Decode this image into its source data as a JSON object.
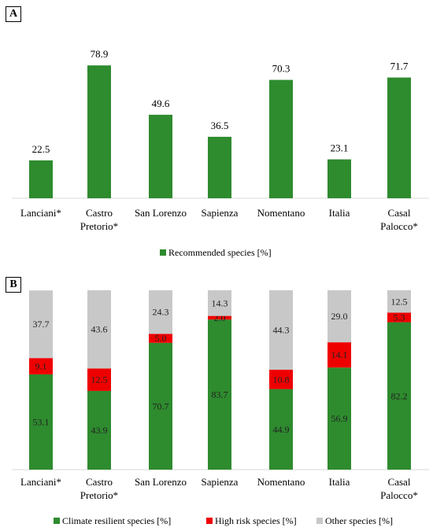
{
  "panels": {
    "a_label": "A",
    "b_label": "B"
  },
  "colors": {
    "green": "#2e8b2e",
    "red": "#ee0000",
    "gray": "#c8c8c8"
  },
  "chart_data": [
    {
      "type": "bar",
      "categories": [
        [
          "Lanciani*"
        ],
        [
          "Castro",
          "Pretorio*"
        ],
        [
          "San Lorenzo"
        ],
        [
          "Sapienza"
        ],
        [
          "Nomentano"
        ],
        [
          "Italia"
        ],
        [
          "Casal",
          "Palocco*"
        ]
      ],
      "series": [
        {
          "name": "Recommended species [%]",
          "values": [
            22.5,
            78.9,
            49.6,
            36.5,
            70.3,
            23.1,
            71.7
          ]
        }
      ],
      "value_labels": [
        "22.5",
        "78.9",
        "49.6",
        "36.5",
        "70.3",
        "23.1",
        "71.7"
      ],
      "ylim": [
        0,
        100
      ],
      "grid": false,
      "legend": "bottom"
    },
    {
      "type": "bar",
      "stacked": true,
      "categories": [
        [
          "Lanciani*"
        ],
        [
          "Castro",
          "Pretorio*"
        ],
        [
          "San Lorenzo"
        ],
        [
          "Sapienza"
        ],
        [
          "Nomentano"
        ],
        [
          "Italia"
        ],
        [
          "Casal",
          "Palocco*"
        ]
      ],
      "series": [
        {
          "name": "Climate resilient species [%]",
          "values": [
            53.1,
            43.9,
            70.7,
            83.7,
            44.9,
            56.9,
            82.2
          ],
          "labels": [
            "53.1",
            "43.9",
            "70.7",
            "83.7",
            "44.9",
            "56.9",
            "82.2"
          ]
        },
        {
          "name": "High risk species [%]",
          "values": [
            9.1,
            12.5,
            5.0,
            2.0,
            10.8,
            14.1,
            5.3
          ],
          "labels": [
            "9.1",
            "12.5",
            "5.0",
            "2.0",
            "10.8",
            "14.1",
            "5.3"
          ]
        },
        {
          "name": "Other species [%]",
          "values": [
            37.7,
            43.6,
            24.3,
            14.3,
            44.3,
            29.0,
            12.5
          ],
          "labels": [
            "37.7",
            "43.6",
            "24.3",
            "14.3",
            "44.3",
            "29.0",
            "12.5"
          ]
        }
      ],
      "ylim": [
        0,
        100
      ],
      "grid": false,
      "legend": "bottom"
    }
  ]
}
